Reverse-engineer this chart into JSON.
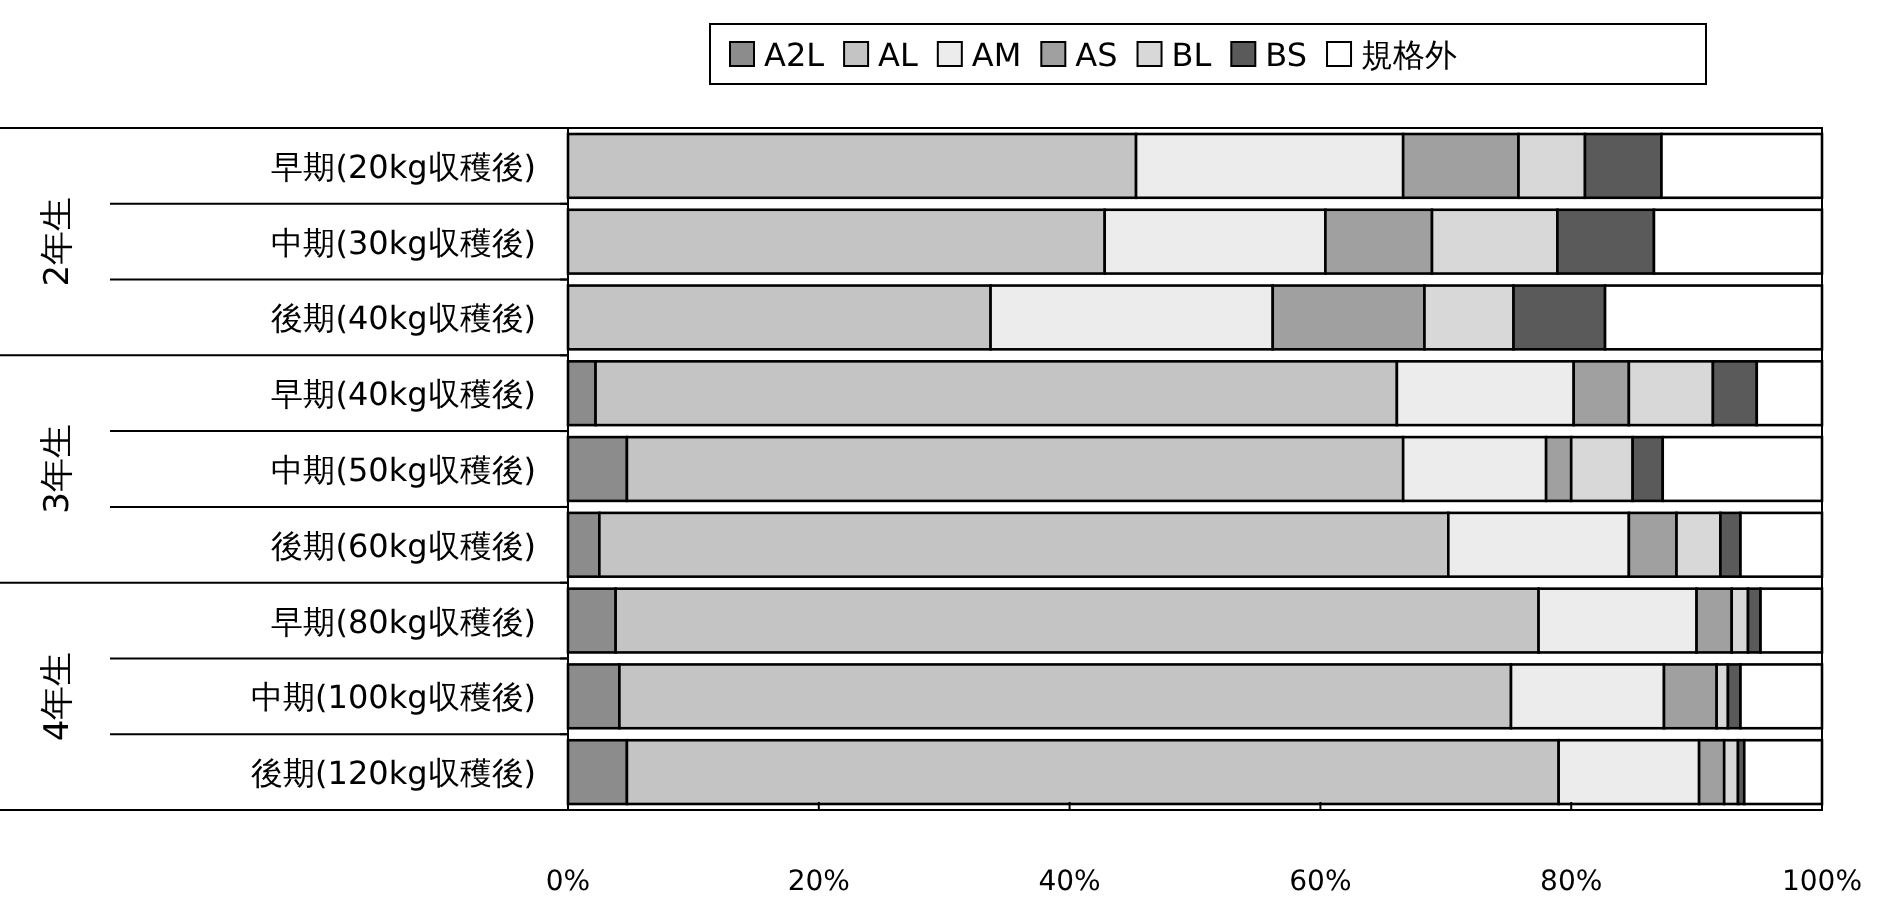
{
  "chart_data": {
    "type": "bar",
    "orientation": "horizontal",
    "stacked": true,
    "categories": [
      "早期(20kg収穫後)",
      "中期(30kg収穫後)",
      "後期(40kg収穫後)",
      "早期(40kg収穫後)",
      "中期(50kg収穫後)",
      "後期(60kg収穫後)",
      "早期(80kg収穫後)",
      "中期(100kg収穫後)",
      "後期(120kg収穫後)"
    ],
    "series": [
      {
        "name": "A2L",
        "color": "#8c8c8c",
        "values": [
          0,
          0,
          0,
          2.2,
          4.7,
          2.5,
          3.8,
          4.1,
          4.7
        ]
      },
      {
        "name": "AL",
        "color": "#c4c4c4",
        "values": [
          45.3,
          42.8,
          33.7,
          63.9,
          61.9,
          67.7,
          73.6,
          71.1,
          74.3
        ]
      },
      {
        "name": "AM",
        "color": "#ececec",
        "values": [
          21.3,
          17.6,
          22.5,
          14.1,
          11.4,
          14.4,
          12.6,
          12.2,
          11.2
        ]
      },
      {
        "name": "AS",
        "color": "#a0a0a0",
        "values": [
          9.2,
          8.5,
          12.1,
          4.4,
          2.0,
          3.8,
          2.8,
          4.2,
          2.0
        ]
      },
      {
        "name": "BL",
        "color": "#d8d8d8",
        "values": [
          5.3,
          10.0,
          7.1,
          6.7,
          4.9,
          3.5,
          1.3,
          0.9,
          1.1
        ]
      },
      {
        "name": "BS",
        "color": "#5a5a5a",
        "values": [
          6.1,
          7.7,
          7.3,
          3.5,
          2.4,
          1.6,
          1.0,
          1.0,
          0.5
        ]
      },
      {
        "name": "規格外",
        "color": "#ffffff",
        "values": [
          12.8,
          13.4,
          17.3,
          5.2,
          12.7,
          6.5,
          4.9,
          6.5,
          6.2
        ]
      }
    ],
    "xlim": [
      0,
      100
    ],
    "xticks": [
      {
        "value": 0,
        "label": "0%"
      },
      {
        "value": 20,
        "label": "20%"
      },
      {
        "value": 40,
        "label": "40%"
      },
      {
        "value": 60,
        "label": "60%"
      },
      {
        "value": 80,
        "label": "80%"
      },
      {
        "value": 100,
        "label": "100%"
      }
    ],
    "annotations": [
      "2年生",
      "3年生",
      "4年生"
    ],
    "legend": "top"
  }
}
